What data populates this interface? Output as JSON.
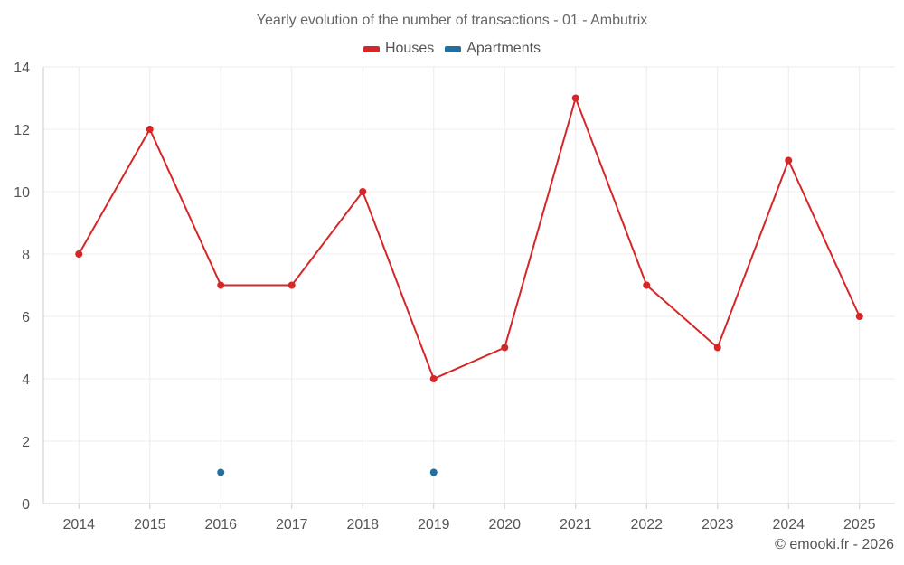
{
  "chart_data": {
    "type": "line",
    "title": "Yearly evolution of the number of transactions - 01 - Ambutrix",
    "categories": [
      "2014",
      "2015",
      "2016",
      "2017",
      "2018",
      "2019",
      "2020",
      "2021",
      "2022",
      "2023",
      "2024",
      "2025"
    ],
    "series": [
      {
        "name": "Houses",
        "color": "#d62728",
        "values": [
          8,
          12,
          7,
          7,
          10,
          4,
          5,
          13,
          7,
          5,
          11,
          6
        ]
      },
      {
        "name": "Apartments",
        "color": "#1f6fa0",
        "values": [
          null,
          null,
          1,
          null,
          null,
          1,
          null,
          null,
          null,
          null,
          null,
          null
        ]
      }
    ],
    "ylim": [
      0,
      14
    ],
    "yticks": [
      0,
      2,
      4,
      6,
      8,
      10,
      12,
      14
    ],
    "grid": true,
    "legend_position": "top-center"
  },
  "footer": "© emooki.fr - 2026"
}
